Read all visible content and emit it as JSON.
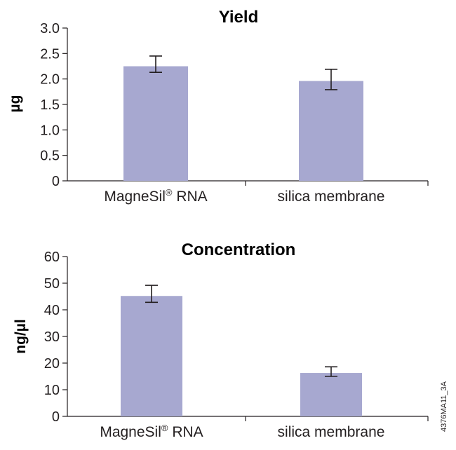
{
  "figure_code": "4376MA11_3A",
  "chart_data": [
    {
      "type": "bar",
      "title": "Yield",
      "xlabel": "",
      "ylabel": "µg",
      "ylim": [
        0,
        3.0
      ],
      "yticks": [
        "0",
        "0.5",
        "1.0",
        "1.5",
        "2.0",
        "2.5",
        "3.0"
      ],
      "ytick_values": [
        0,
        0.5,
        1.0,
        1.5,
        2.0,
        2.5,
        3.0
      ],
      "categories": [
        "MagneSil® RNA",
        "silica membrane"
      ],
      "category_parts": [
        {
          "main": "MagneSil",
          "sup": "®",
          "rest": " RNA"
        },
        {
          "main": "silica membrane",
          "sup": "",
          "rest": ""
        }
      ],
      "values": [
        2.25,
        1.96
      ],
      "error_low": [
        2.13,
        1.79
      ],
      "error_high": [
        2.45,
        2.19
      ],
      "bar_color": "#a7a8d0",
      "grid": false
    },
    {
      "type": "bar",
      "title": "Concentration",
      "xlabel": "",
      "ylabel": "ng/µl",
      "ylim": [
        0,
        60
      ],
      "yticks": [
        "0",
        "10",
        "20",
        "30",
        "40",
        "50",
        "60"
      ],
      "ytick_values": [
        0,
        10,
        20,
        30,
        40,
        50,
        60
      ],
      "categories": [
        "MagneSil® RNA",
        "silica membrane"
      ],
      "category_parts": [
        {
          "main": "MagneSil",
          "sup": "®",
          "rest": " RNA"
        },
        {
          "main": "silica membrane",
          "sup": "",
          "rest": ""
        }
      ],
      "values": [
        45.2,
        16.3
      ],
      "error_low": [
        42.8,
        15.0
      ],
      "error_high": [
        49.2,
        18.6
      ],
      "bar_color": "#a7a8d0",
      "grid": false
    }
  ]
}
